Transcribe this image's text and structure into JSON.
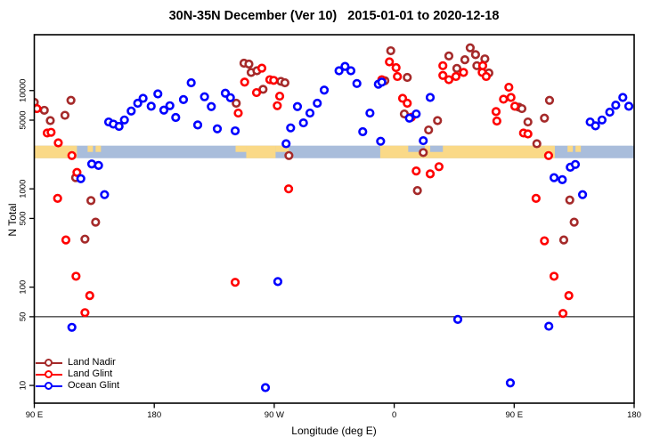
{
  "title": "30N-35N December (Ver 10)   2015-01-01 to 2020-12-18",
  "axes": {
    "x_label": "Longitude (deg E)",
    "y_label": "N Total",
    "x_ticks": [
      {
        "value": 90,
        "label": "90 E"
      },
      {
        "value": 180,
        "label": "180"
      },
      {
        "value": 270,
        "label": "90 W"
      },
      {
        "value": 360,
        "label": "0"
      },
      {
        "value": 450,
        "label": "90 E"
      },
      {
        "value": 540,
        "label": "180"
      }
    ],
    "y_ticks": [
      {
        "value": 10000,
        "label": "10000"
      },
      {
        "value": 5000,
        "label": "5000"
      },
      {
        "value": 1000,
        "label": "1000"
      },
      {
        "value": 500,
        "label": "500"
      },
      {
        "value": 100,
        "label": "100"
      },
      {
        "value": 50,
        "label": "50"
      },
      {
        "value": 10,
        "label": "10"
      }
    ]
  },
  "legend": {
    "items": [
      {
        "label": "Land Nadir",
        "color": "#A52A2A"
      },
      {
        "label": "Land Glint",
        "color": "#FF0000"
      },
      {
        "label": "Ocean Glint",
        "color": "#0000FF"
      }
    ]
  },
  "colors": {
    "axis": "#000000",
    "reference_line": "#000000",
    "marker_fill": "#FFFFFF"
  },
  "chart_data": {
    "type": "scatter",
    "title": "30N-35N December (Ver 10)   2015-01-01 to 2020-12-18",
    "xlabel": "Longitude (deg E)",
    "ylabel": "N Total",
    "x_domain": [
      90,
      540
    ],
    "y_domain": [
      6.6,
      37000
    ],
    "y_scale": "log",
    "grid": false,
    "legend_position": "bottom-left-inside",
    "reference_line_y": 50,
    "map_strip": {
      "comment": "land/ocean strip along 30N-35N drawn across the plot",
      "value_range": [
        2050,
        2750
      ],
      "ocean_color": "#A9BDDB",
      "land_color": "#FAD987",
      "land_segments": [
        [
          90,
          122
        ],
        [
          249,
          271
        ],
        [
          349.5,
          480.5
        ]
      ],
      "land_top_segments": [
        [
          130,
          134
        ],
        [
          136,
          140
        ],
        [
          241,
          249
        ],
        [
          271,
          281
        ],
        [
          383,
          387
        ],
        [
          490,
          494
        ],
        [
          496,
          500
        ]
      ],
      "ocean_top_segments": [
        [
          370.5,
          383
        ],
        [
          387,
          396.5
        ]
      ]
    },
    "series": [
      {
        "name": "Land Nadir",
        "color": "#A52A2A",
        "points": [
          [
            90,
            7600
          ],
          [
            97.5,
            6300
          ],
          [
            102,
            4950
          ],
          [
            113,
            5600
          ],
          [
            117.5,
            7950
          ],
          [
            121,
            1300
          ],
          [
            132.5,
            760
          ],
          [
            136,
            458
          ],
          [
            128,
            308
          ],
          [
            241.5,
            7430
          ],
          [
            247.3,
            19000
          ],
          [
            251,
            18600
          ],
          [
            252.7,
            15300
          ],
          [
            257,
            15900
          ],
          [
            261.6,
            10300
          ],
          [
            275,
            12400
          ],
          [
            278,
            12000
          ],
          [
            281,
            2180
          ],
          [
            357.4,
            25400
          ],
          [
            353,
            12600
          ],
          [
            369.8,
            13600
          ],
          [
            367.6,
            5780
          ],
          [
            377.4,
            960
          ],
          [
            381.8,
            2340
          ],
          [
            385.8,
            3970
          ],
          [
            392.5,
            4950
          ],
          [
            401,
            22500
          ],
          [
            407,
            16800
          ],
          [
            413,
            20600
          ],
          [
            417,
            27200
          ],
          [
            421,
            23200
          ],
          [
            422,
            17900
          ],
          [
            428,
            21000
          ],
          [
            431,
            15100
          ],
          [
            453.6,
            6770
          ],
          [
            455.8,
            6550
          ],
          [
            460.3,
            4790
          ],
          [
            476.5,
            7950
          ],
          [
            472.7,
            5240
          ],
          [
            467,
            2880
          ],
          [
            491.7,
            770
          ],
          [
            495,
            458
          ],
          [
            487.2,
            302
          ]
        ]
      },
      {
        "name": "Land Glint",
        "color": "#FF0000",
        "points": [
          [
            92,
            6550
          ],
          [
            99.7,
            3700
          ],
          [
            102.6,
            3760
          ],
          [
            108,
            2940
          ],
          [
            118.2,
            2180
          ],
          [
            122,
            1470
          ],
          [
            107.5,
            800
          ],
          [
            113.7,
            302
          ],
          [
            121.3,
            129
          ],
          [
            131.6,
            82
          ],
          [
            128,
            55
          ],
          [
            240.7,
            112
          ],
          [
            243,
            5900
          ],
          [
            247.8,
            12200
          ],
          [
            256.7,
            9530
          ],
          [
            260.7,
            16900
          ],
          [
            266.7,
            12900
          ],
          [
            269.6,
            12700
          ],
          [
            274.1,
            8770
          ],
          [
            272.3,
            7010
          ],
          [
            280.8,
            1000
          ],
          [
            356.4,
            19600
          ],
          [
            361.4,
            17100
          ],
          [
            362.4,
            13900
          ],
          [
            350.7,
            12900
          ],
          [
            366.3,
            8340
          ],
          [
            369.8,
            7430
          ],
          [
            372.9,
            5360
          ],
          [
            376.5,
            1520
          ],
          [
            387,
            1420
          ],
          [
            393.6,
            1680
          ],
          [
            396.5,
            17900
          ],
          [
            396.5,
            14250
          ],
          [
            401,
            12900
          ],
          [
            406.3,
            13900
          ],
          [
            412,
            15300
          ],
          [
            426,
            15300
          ],
          [
            429,
            13900
          ],
          [
            426.4,
            17900
          ],
          [
            446,
            10800
          ],
          [
            447.6,
            8510
          ],
          [
            442,
            8170
          ],
          [
            450.5,
            6920
          ],
          [
            436.4,
            6110
          ],
          [
            437,
            4900
          ],
          [
            457,
            3700
          ],
          [
            460.3,
            3620
          ],
          [
            475.8,
            2180
          ],
          [
            466.4,
            800
          ],
          [
            472.7,
            296
          ],
          [
            479.9,
            129
          ],
          [
            491,
            82
          ],
          [
            486.6,
            54
          ]
        ]
      },
      {
        "name": "Ocean Glint",
        "color": "#0000FF",
        "points": [
          [
            145.8,
            4790
          ],
          [
            149.3,
            4560
          ],
          [
            153.6,
            4320
          ],
          [
            157.6,
            5020
          ],
          [
            162.7,
            6190
          ],
          [
            167.6,
            7430
          ],
          [
            171.6,
            8340
          ],
          [
            177.7,
            6920
          ],
          [
            182.7,
            9250
          ],
          [
            187.2,
            6320
          ],
          [
            191.7,
            7010
          ],
          [
            196.1,
            5320
          ],
          [
            201.9,
            8100
          ],
          [
            207.7,
            12000
          ],
          [
            217.7,
            8650
          ],
          [
            222.8,
            6870
          ],
          [
            233.3,
            9400
          ],
          [
            237.1,
            8470
          ],
          [
            212.6,
            4470
          ],
          [
            227.3,
            4080
          ],
          [
            240.7,
            3890
          ],
          [
            133.1,
            1790
          ],
          [
            138.2,
            1730
          ],
          [
            124.9,
            1270
          ],
          [
            142.7,
            873
          ],
          [
            118.2,
            39
          ],
          [
            263.4,
            9.5
          ],
          [
            272.7,
            114
          ],
          [
            278.9,
            2880
          ],
          [
            282.3,
            4170
          ],
          [
            287.4,
            6870
          ],
          [
            291.9,
            4690
          ],
          [
            296.8,
            5900
          ],
          [
            302.3,
            7430
          ],
          [
            307.5,
            10100
          ],
          [
            318.6,
            15900
          ],
          [
            323.1,
            17600
          ],
          [
            327.5,
            15900
          ],
          [
            332,
            11800
          ],
          [
            341.8,
            5900
          ],
          [
            348.1,
            11600
          ],
          [
            350.7,
            12200
          ],
          [
            336.4,
            3810
          ],
          [
            349.8,
            3050
          ],
          [
            371.4,
            5240
          ],
          [
            376.5,
            5780
          ],
          [
            381.8,
            3090
          ],
          [
            387,
            8510
          ],
          [
            407.7,
            47
          ],
          [
            479.9,
            1300
          ],
          [
            486.1,
            1240
          ],
          [
            501.3,
            873
          ],
          [
            492.1,
            1660
          ],
          [
            495.9,
            1770
          ],
          [
            507,
            4790
          ],
          [
            511,
            4380
          ],
          [
            515.9,
            5020
          ],
          [
            521.7,
            6030
          ],
          [
            526.2,
            7110
          ],
          [
            531.5,
            8510
          ],
          [
            536,
            6920
          ],
          [
            476,
            40
          ],
          [
            447.1,
            10.6
          ]
        ]
      }
    ]
  }
}
